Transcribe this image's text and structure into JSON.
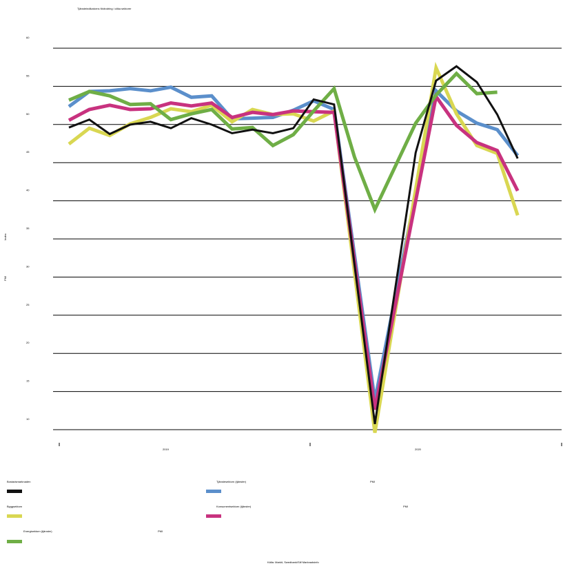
{
  "title": "Tjänsteindikatorns förändring i olika sektorer",
  "source": "Källa: Markit, Swedbank/Silf Marknadsinfo",
  "ylabel": "PMI",
  "ylabel2": "Index",
  "chart_data": {
    "type": "line",
    "title": "Tjänsteindikatorns förändring i olika sektorer",
    "ylabel": "PMI",
    "y_ticks": [
      "60",
      "55",
      "50",
      "45",
      "40",
      "35",
      "30",
      "25",
      "20",
      "15",
      "10"
    ],
    "x_group_labels": [
      "2019",
      "2020"
    ],
    "ylim": [
      8.5,
      61.5
    ],
    "n_points": 24,
    "grid": true,
    "legend_position": "bottom",
    "series": [
      {
        "name": "Bostadsmarknaden",
        "color": "#111111",
        "values": [
          50.1,
          51.2,
          49.2,
          50.5,
          50.9,
          50.0,
          51.4,
          50.5,
          49.3,
          49.8,
          49.3,
          50.0,
          54.0,
          53.3,
          null,
          8.9,
          null,
          46.6,
          56.6,
          58.6,
          56.4,
          51.9,
          45.8,
          null
        ]
      },
      {
        "name": "Tjänstesektorn (tjänster)",
        "color": "#5b8fcb",
        "values": [
          53.0,
          55.1,
          55.2,
          55.5,
          55.2,
          55.7,
          54.3,
          54.5,
          51.3,
          51.4,
          51.5,
          52.5,
          53.8,
          52.6,
          null,
          12.2,
          null,
          null,
          55.2,
          52.4,
          50.7,
          49.8,
          46.2,
          null
        ]
      },
      {
        "name": "Byggsektorn",
        "color": "#d9d752",
        "values": [
          47.8,
          50.0,
          49.0,
          50.6,
          51.5,
          52.7,
          52.3,
          53.2,
          50.9,
          52.6,
          51.9,
          52.0,
          51.0,
          52.4,
          null,
          7.7,
          null,
          null,
          58.4,
          52.0,
          47.6,
          46.5,
          37.9,
          null
        ]
      },
      {
        "name": "Konsumentsektorn (tjänster)",
        "color": "#c8327f",
        "values": [
          51.1,
          52.6,
          53.2,
          52.6,
          52.7,
          53.5,
          53.1,
          53.5,
          51.5,
          52.2,
          51.9,
          52.4,
          52.3,
          52.2,
          null,
          10.9,
          null,
          null,
          54.4,
          50.4,
          48.0,
          46.9,
          41.3,
          null
        ]
      },
      {
        "name": "Energisektorn (tjänster)",
        "color": "#6fae46",
        "values": [
          53.9,
          55.1,
          54.5,
          53.3,
          53.4,
          51.2,
          52.0,
          52.6,
          49.9,
          50.1,
          47.6,
          49.1,
          52.4,
          55.5,
          46.0,
          38.7,
          null,
          50.7,
          54.6,
          57.6,
          54.8,
          55.0,
          null,
          null
        ]
      }
    ]
  },
  "legend": {
    "items": [
      {
        "label": "Bostadsmarknaden",
        "color": "#111111"
      },
      {
        "label": "Tjänstesektorn (tjänster)",
        "color": "#5b8fcb"
      },
      {
        "label": "Byggsektorn",
        "color": "#d9d752"
      },
      {
        "label": "Konsumentsektorn (tjänster)",
        "color": "#c8327f"
      },
      {
        "label": "Energisektorn (tjänster)",
        "color": "#6fae46"
      }
    ],
    "notes": [
      "PMI",
      "PMI",
      "PMI"
    ]
  }
}
